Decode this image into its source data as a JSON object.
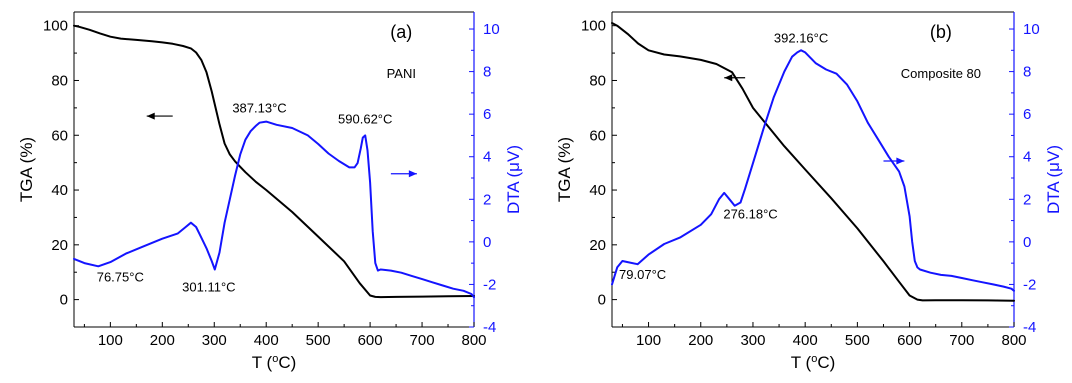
{
  "chart_data": [
    {
      "type": "line",
      "panel_label": "(a)",
      "sample_label": "PANI",
      "xlabel": "T (",
      "xlabel_sup": "o",
      "xlabel_end": "C)",
      "ylabel_left": "TGA (%)",
      "ylabel_right_prefix": "DTA (",
      "ylabel_right_mu": "μ",
      "ylabel_right_end": "V)",
      "xlim": [
        30,
        800
      ],
      "ylim_left": [
        -10,
        105
      ],
      "ylim_right": [
        -4,
        10.8
      ],
      "x_ticks": [
        100,
        200,
        300,
        400,
        500,
        600,
        700,
        800
      ],
      "y_left_ticks": [
        0,
        20,
        40,
        60,
        80,
        100
      ],
      "y_right_ticks": [
        -4,
        -2,
        0,
        2,
        4,
        6,
        8,
        10
      ],
      "series": [
        {
          "axis": "left",
          "color": "#000000",
          "x": [
            30,
            40,
            60,
            80,
            100,
            120,
            150,
            180,
            200,
            220,
            240,
            255,
            265,
            275,
            285,
            295,
            300,
            310,
            320,
            330,
            340,
            350,
            360,
            380,
            400,
            450,
            500,
            550,
            580,
            600,
            610,
            620,
            650,
            700,
            750,
            800
          ],
          "y": [
            100,
            99.6,
            98.5,
            97.2,
            96,
            95.3,
            94.8,
            94.3,
            93.9,
            93.4,
            92.6,
            91.7,
            90.2,
            87.5,
            83,
            76,
            72,
            64,
            57,
            53,
            50.5,
            48.5,
            46.5,
            43,
            40,
            32,
            23,
            14,
            6,
            1.5,
            1.0,
            0.9,
            1.0,
            1.1,
            1.2,
            1.3
          ]
        },
        {
          "axis": "right",
          "color": "#1414ff",
          "x": [
            30,
            50,
            76.75,
            100,
            130,
            160,
            200,
            230,
            245,
            255,
            265,
            275,
            285,
            295,
            301.11,
            310,
            320,
            330,
            340,
            350,
            360,
            370,
            380,
            387.13,
            400,
            420,
            450,
            480,
            500,
            520,
            540,
            560,
            570,
            576,
            582,
            586,
            590.62,
            595,
            600,
            605,
            610,
            615,
            620,
            640,
            660,
            680,
            700,
            720,
            740,
            760,
            780,
            795,
            800
          ],
          "y": [
            -0.8,
            -1.0,
            -1.15,
            -0.95,
            -0.55,
            -0.25,
            0.15,
            0.4,
            0.7,
            0.9,
            0.7,
            0.2,
            -0.3,
            -0.9,
            -1.3,
            -0.5,
            0.9,
            2.0,
            3.1,
            4.1,
            4.8,
            5.2,
            5.45,
            5.6,
            5.65,
            5.5,
            5.35,
            5.0,
            4.6,
            4.15,
            3.8,
            3.5,
            3.5,
            3.7,
            4.4,
            4.9,
            5.0,
            4.3,
            2.8,
            0.5,
            -1.0,
            -1.35,
            -1.3,
            -1.35,
            -1.45,
            -1.6,
            -1.75,
            -1.9,
            -2.05,
            -2.2,
            -2.3,
            -2.45,
            -2.6
          ]
        }
      ],
      "annotations": [
        {
          "text": "76.75°C",
          "x": 76.75,
          "y": -1.15,
          "axis": "right"
        },
        {
          "text": "301.11°C",
          "x": 301.11,
          "y": -1.3,
          "axis": "right"
        },
        {
          "text": "387.13°C",
          "x": 387.13,
          "y": 5.6,
          "axis": "right"
        },
        {
          "text": "590.62°C",
          "x": 590.62,
          "y": 5.0,
          "axis": "right"
        }
      ],
      "arrows": [
        {
          "direction": "left",
          "x_from": 220,
          "x_to": 170,
          "y": 67,
          "axis": "left",
          "color": "#000000"
        },
        {
          "direction": "right",
          "x_from": 640,
          "x_to": 690,
          "y": 3.2,
          "axis": "right",
          "color": "#1414ff"
        }
      ]
    },
    {
      "type": "line",
      "panel_label": "(b)",
      "sample_label": "Composite 80",
      "xlabel": "T (",
      "xlabel_sup": "o",
      "xlabel_end": "C)",
      "ylabel_left": "TGA (%)",
      "ylabel_right_prefix": "DTA (",
      "ylabel_right_mu": "μ",
      "ylabel_right_end": "V)",
      "xlim": [
        30,
        800
      ],
      "ylim_left": [
        -10,
        105
      ],
      "ylim_right": [
        -4,
        10.8
      ],
      "x_ticks": [
        100,
        200,
        300,
        400,
        500,
        600,
        700,
        800
      ],
      "y_left_ticks": [
        0,
        20,
        40,
        60,
        80,
        100
      ],
      "y_right_ticks": [
        -4,
        -2,
        0,
        2,
        4,
        6,
        8,
        10
      ],
      "series": [
        {
          "axis": "left",
          "color": "#000000",
          "x": [
            30,
            40,
            60,
            80,
            100,
            130,
            160,
            200,
            230,
            260,
            280,
            300,
            330,
            360,
            400,
            450,
            500,
            550,
            580,
            600,
            615,
            625,
            650,
            700,
            750,
            800
          ],
          "y": [
            101,
            100,
            97,
            93.5,
            91,
            89.5,
            88.8,
            87.5,
            86,
            83,
            77,
            70,
            63,
            56,
            47.5,
            37,
            26,
            14,
            6.5,
            1.5,
            0,
            -0.3,
            -0.2,
            -0.2,
            -0.3,
            -0.4
          ]
        },
        {
          "axis": "right",
          "color": "#1414ff",
          "x": [
            30,
            40,
            50,
            60,
            79.07,
            100,
            130,
            160,
            200,
            220,
            235,
            245,
            255,
            265,
            276.18,
            285,
            300,
            320,
            340,
            360,
            375,
            385,
            392.16,
            400,
            420,
            440,
            460,
            480,
            500,
            520,
            540,
            560,
            580,
            590,
            600,
            605,
            610,
            615,
            620,
            640,
            660,
            680,
            700,
            720,
            740,
            760,
            780,
            795,
            800
          ],
          "y": [
            -2.0,
            -1.2,
            -0.9,
            -0.95,
            -1.05,
            -0.6,
            -0.1,
            0.2,
            0.8,
            1.3,
            2.0,
            2.3,
            2.0,
            1.7,
            1.85,
            2.5,
            3.7,
            5.3,
            6.8,
            8.0,
            8.7,
            8.9,
            9.0,
            8.9,
            8.4,
            8.1,
            7.9,
            7.4,
            6.6,
            5.6,
            4.8,
            4.0,
            3.3,
            2.6,
            1.2,
            0.0,
            -0.9,
            -1.2,
            -1.3,
            -1.45,
            -1.55,
            -1.6,
            -1.7,
            -1.8,
            -1.9,
            -2.0,
            -2.1,
            -2.2,
            -2.3
          ]
        }
      ],
      "annotations": [
        {
          "text": "79.07°C",
          "x": 79.07,
          "y": -1.05,
          "axis": "right"
        },
        {
          "text": "276.18°C",
          "x": 276.18,
          "y": 1.85,
          "axis": "right"
        },
        {
          "text": "392.16°C",
          "x": 392.16,
          "y": 9.0,
          "axis": "right"
        }
      ],
      "arrows": [
        {
          "direction": "left",
          "x_from": 285,
          "x_to": 245,
          "y": 81,
          "axis": "left",
          "color": "#000000"
        },
        {
          "direction": "right",
          "x_from": 550,
          "x_to": 590,
          "y": 3.8,
          "axis": "right",
          "color": "#1414ff"
        }
      ]
    }
  ]
}
